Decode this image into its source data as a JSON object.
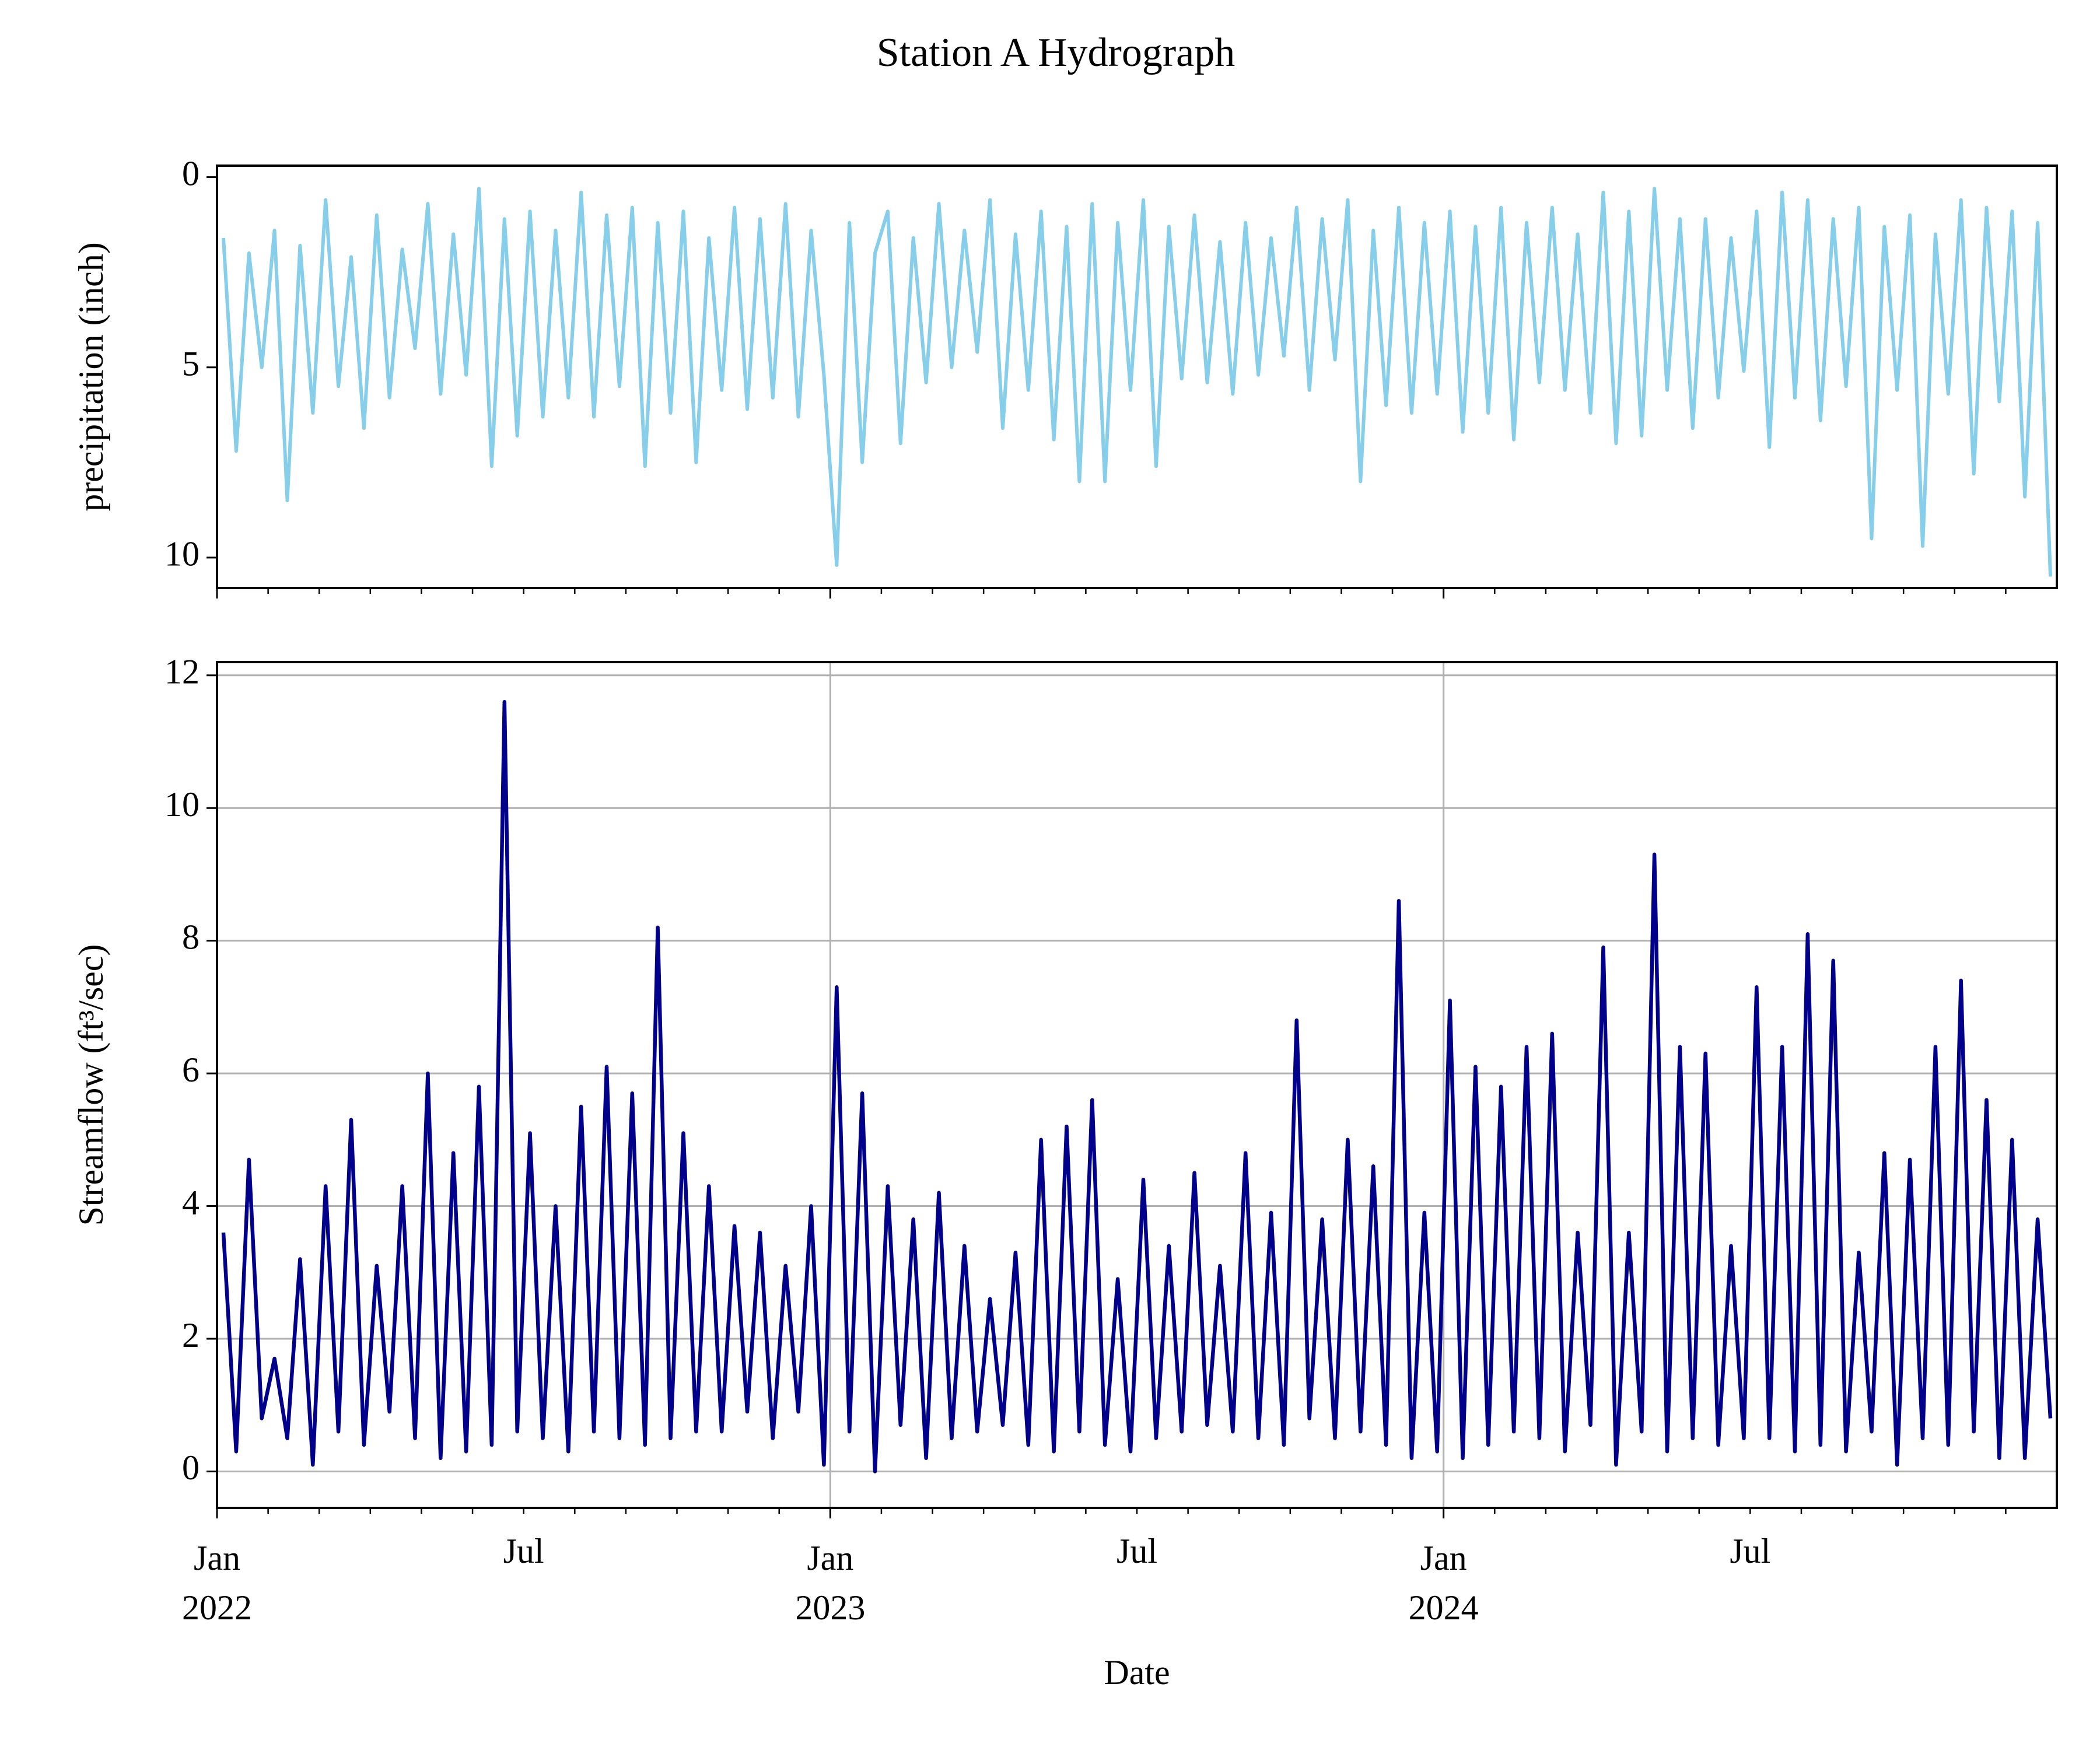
{
  "chart_data": {
    "type": "line",
    "title": "Station A Hydrograph",
    "xlabel": "Date",
    "xlim": [
      "2022-01",
      "2024-12"
    ],
    "xticks": [
      {
        "value": "2022-01",
        "label": [
          "Jan",
          "2022"
        ]
      },
      {
        "value": "2023-01",
        "label": [
          "Jan",
          "2023"
        ]
      },
      {
        "value": "2024-01",
        "label": [
          "Jan",
          "2024"
        ]
      }
    ],
    "xminorticks": [
      "2022-02",
      "2022-03",
      "2022-04",
      "2022-05",
      "2022-06",
      {
        "value": "2022-07",
        "label": "Jul"
      },
      "2022-08",
      "2022-09",
      "2022-10",
      "2022-11",
      "2022-12",
      "2023-02",
      "2023-03",
      "2023-04",
      "2023-05",
      "2023-06",
      {
        "value": "2023-07",
        "label": "Jul"
      },
      "2023-08",
      "2023-09",
      "2023-10",
      "2023-11",
      "2023-12",
      "2024-02",
      "2024-03",
      "2024-04",
      "2024-05",
      "2024-06",
      {
        "value": "2024-07",
        "label": "Jul"
      },
      "2024-08",
      "2024-09",
      "2024-10",
      "2024-11",
      "2024-12"
    ],
    "x": [
      "2022-01",
      "2022-01",
      "2022-01",
      "2022-01",
      "2022-02",
      "2022-02",
      "2022-02",
      "2022-02",
      "2022-03",
      "2022-03",
      "2022-03",
      "2022-03",
      "2022-04",
      "2022-04",
      "2022-04",
      "2022-04",
      "2022-05",
      "2022-05",
      "2022-05",
      "2022-05",
      "2022-06",
      "2022-06",
      "2022-06",
      "2022-06",
      "2022-07",
      "2022-07",
      "2022-07",
      "2022-07",
      "2022-08",
      "2022-08",
      "2022-08",
      "2022-08",
      "2022-09",
      "2022-09",
      "2022-09",
      "2022-09",
      "2022-10",
      "2022-10",
      "2022-10",
      "2022-10",
      "2022-11",
      "2022-11",
      "2022-11",
      "2022-11",
      "2022-12",
      "2022-12",
      "2022-12",
      "2022-12",
      "2023-01",
      "2023-01",
      "2023-01",
      "2023-01",
      "2023-02",
      "2023-02",
      "2023-02",
      "2023-02",
      "2023-03",
      "2023-03",
      "2023-03",
      "2023-03",
      "2023-04",
      "2023-04",
      "2023-04",
      "2023-04",
      "2023-05",
      "2023-05",
      "2023-05",
      "2023-05",
      "2023-06",
      "2023-06",
      "2023-06",
      "2023-06",
      "2023-07",
      "2023-07",
      "2023-07",
      "2023-07",
      "2023-08",
      "2023-08",
      "2023-08",
      "2023-08",
      "2023-09",
      "2023-09",
      "2023-09",
      "2023-09",
      "2023-10",
      "2023-10",
      "2023-10",
      "2023-10",
      "2023-11",
      "2023-11",
      "2023-11",
      "2023-11",
      "2023-12",
      "2023-12",
      "2023-12",
      "2023-12",
      "2024-01",
      "2024-01",
      "2024-01",
      "2024-01",
      "2024-02",
      "2024-02",
      "2024-02",
      "2024-02",
      "2024-03",
      "2024-03",
      "2024-03",
      "2024-03",
      "2024-04",
      "2024-04",
      "2024-04",
      "2024-04",
      "2024-05",
      "2024-05",
      "2024-05",
      "2024-05",
      "2024-06",
      "2024-06",
      "2024-06",
      "2024-06",
      "2024-07",
      "2024-07",
      "2024-07",
      "2024-07",
      "2024-08",
      "2024-08",
      "2024-08",
      "2024-08",
      "2024-09",
      "2024-09",
      "2024-09",
      "2024-09",
      "2024-10",
      "2024-10",
      "2024-10",
      "2024-10",
      "2024-11",
      "2024-11",
      "2024-11",
      "2024-11",
      "2024-12",
      "2024-12",
      "2024-12",
      "2024-12"
    ],
    "panels": [
      {
        "ylabel": "precipitation (inch)",
        "ylim": [
          -0.3,
          10.8
        ],
        "inverted": true,
        "yticks": [
          0,
          5,
          10
        ],
        "grid": false,
        "series": [
          {
            "name": "precipitation",
            "color": "#87ceeb",
            "values": [
              1.6,
              7.2,
              2.0,
              5.0,
              1.4,
              8.5,
              1.8,
              6.2,
              0.6,
              5.5,
              2.1,
              6.6,
              1.0,
              5.8,
              1.9,
              4.5,
              0.7,
              5.7,
              1.5,
              5.2,
              0.3,
              7.6,
              1.1,
              6.8,
              0.9,
              6.3,
              1.4,
              5.8,
              0.4,
              6.3,
              1.0,
              5.5,
              0.8,
              7.6,
              1.2,
              6.2,
              0.9,
              7.5,
              1.6,
              5.6,
              0.8,
              6.1,
              1.1,
              5.8,
              0.7,
              6.3,
              1.4,
              5.2,
              10.2,
              1.2,
              7.5,
              2.0,
              0.9,
              7.0,
              1.6,
              5.4,
              0.7,
              5.0,
              1.4,
              4.6,
              0.6,
              6.6,
              1.5,
              5.6,
              0.9,
              6.9,
              1.3,
              8.0,
              0.7,
              8.0,
              1.2,
              5.6,
              0.6,
              7.6,
              1.3,
              5.3,
              1.0,
              5.4,
              1.7,
              5.7,
              1.2,
              5.2,
              1.6,
              4.7,
              0.8,
              5.6,
              1.1,
              4.8,
              0.6,
              8.0,
              1.4,
              6.0,
              0.8,
              6.2,
              1.2,
              5.7,
              0.9,
              6.7,
              1.3,
              6.2,
              0.8,
              6.9,
              1.2,
              5.4,
              0.8,
              5.6,
              1.5,
              6.2,
              0.4,
              7.0,
              0.9,
              6.8,
              0.3,
              5.6,
              1.1,
              6.6,
              1.1,
              5.8,
              1.6,
              5.1,
              0.9,
              7.1,
              0.4,
              5.8,
              0.6,
              6.4,
              1.1,
              5.5,
              0.8,
              9.5,
              1.3,
              5.6,
              1.0,
              9.7,
              1.5,
              5.7,
              0.6,
              7.8,
              0.8,
              5.9,
              0.9,
              8.4,
              1.2,
              10.5
            ]
          }
        ]
      },
      {
        "ylabel": "Streamflow (ft³/sec)",
        "ylim": [
          -0.55,
          12.2
        ],
        "inverted": false,
        "yticks": [
          0,
          2,
          4,
          6,
          8,
          10,
          12
        ],
        "grid": true,
        "series": [
          {
            "name": "streamflow",
            "color": "#00008b",
            "values": [
              3.6,
              0.3,
              4.7,
              0.8,
              1.7,
              0.5,
              3.2,
              0.1,
              4.3,
              0.6,
              5.3,
              0.4,
              3.1,
              0.9,
              4.3,
              0.5,
              6.0,
              0.2,
              4.8,
              0.3,
              5.8,
              0.4,
              11.6,
              0.6,
              5.1,
              0.5,
              4.0,
              0.3,
              5.5,
              0.6,
              6.1,
              0.5,
              5.7,
              0.4,
              8.2,
              0.5,
              5.1,
              0.6,
              4.3,
              0.6,
              3.7,
              0.9,
              3.6,
              0.5,
              3.1,
              0.9,
              4.0,
              0.1,
              7.3,
              0.6,
              5.7,
              0.0,
              4.3,
              0.7,
              3.8,
              0.2,
              4.2,
              0.5,
              3.4,
              0.6,
              2.6,
              0.7,
              3.3,
              0.4,
              5.0,
              0.3,
              5.2,
              0.6,
              5.6,
              0.4,
              2.9,
              0.3,
              4.4,
              0.5,
              3.4,
              0.6,
              4.5,
              0.7,
              3.1,
              0.6,
              4.8,
              0.5,
              3.9,
              0.4,
              6.8,
              0.8,
              3.8,
              0.5,
              5.0,
              0.6,
              4.6,
              0.4,
              8.6,
              0.2,
              3.9,
              0.3,
              7.1,
              0.2,
              6.1,
              0.4,
              5.8,
              0.6,
              6.4,
              0.5,
              6.6,
              0.3,
              3.6,
              0.7,
              7.9,
              0.1,
              3.6,
              0.6,
              9.3,
              0.3,
              6.4,
              0.5,
              6.3,
              0.4,
              3.4,
              0.5,
              7.3,
              0.5,
              6.4,
              0.3,
              8.1,
              0.4,
              7.7,
              0.3,
              3.3,
              0.6,
              4.8,
              0.1,
              4.7,
              0.5,
              6.4,
              0.4,
              7.4,
              0.6,
              5.6,
              0.2,
              5.0,
              0.2,
              3.8,
              0.8
            ]
          }
        ]
      }
    ]
  }
}
